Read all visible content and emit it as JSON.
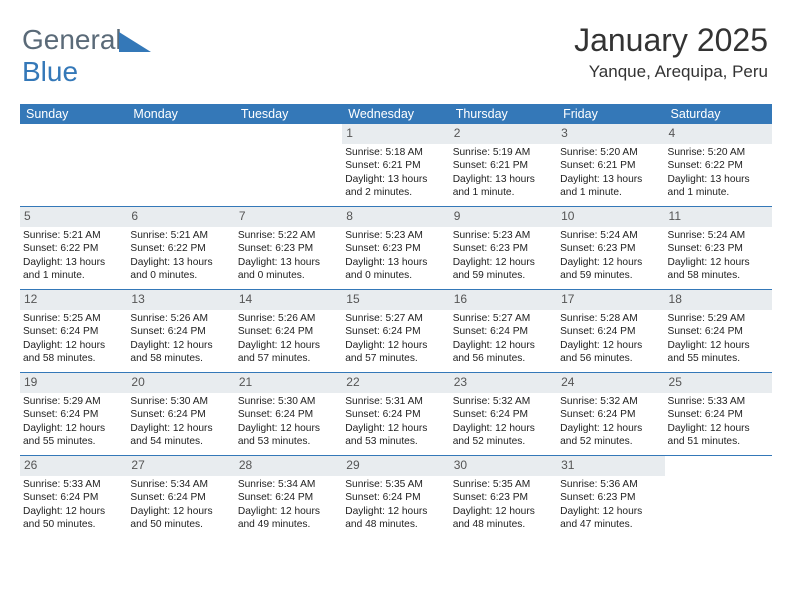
{
  "logo": {
    "part1": "General",
    "part2": "Blue"
  },
  "title": "January 2025",
  "subtitle": "Yanque, Arequipa, Peru",
  "colors": {
    "header_bg": "#3478b8",
    "header_fg": "#ffffff",
    "daynum_bg": "#e8ecef",
    "daynum_fg": "#555555",
    "divider": "#3478b8",
    "text": "#222222"
  },
  "fonts": {
    "title_size": 32,
    "subtitle_size": 17,
    "header_size": 12.5,
    "daynum_size": 12,
    "body_size": 10.2
  },
  "weekdays": [
    "Sunday",
    "Monday",
    "Tuesday",
    "Wednesday",
    "Thursday",
    "Friday",
    "Saturday"
  ],
  "weeks": [
    [
      {
        "n": "",
        "sr": "",
        "ss": "",
        "dl": ""
      },
      {
        "n": "",
        "sr": "",
        "ss": "",
        "dl": ""
      },
      {
        "n": "",
        "sr": "",
        "ss": "",
        "dl": ""
      },
      {
        "n": "1",
        "sr": "Sunrise: 5:18 AM",
        "ss": "Sunset: 6:21 PM",
        "dl": "Daylight: 13 hours and 2 minutes."
      },
      {
        "n": "2",
        "sr": "Sunrise: 5:19 AM",
        "ss": "Sunset: 6:21 PM",
        "dl": "Daylight: 13 hours and 1 minute."
      },
      {
        "n": "3",
        "sr": "Sunrise: 5:20 AM",
        "ss": "Sunset: 6:21 PM",
        "dl": "Daylight: 13 hours and 1 minute."
      },
      {
        "n": "4",
        "sr": "Sunrise: 5:20 AM",
        "ss": "Sunset: 6:22 PM",
        "dl": "Daylight: 13 hours and 1 minute."
      }
    ],
    [
      {
        "n": "5",
        "sr": "Sunrise: 5:21 AM",
        "ss": "Sunset: 6:22 PM",
        "dl": "Daylight: 13 hours and 1 minute."
      },
      {
        "n": "6",
        "sr": "Sunrise: 5:21 AM",
        "ss": "Sunset: 6:22 PM",
        "dl": "Daylight: 13 hours and 0 minutes."
      },
      {
        "n": "7",
        "sr": "Sunrise: 5:22 AM",
        "ss": "Sunset: 6:23 PM",
        "dl": "Daylight: 13 hours and 0 minutes."
      },
      {
        "n": "8",
        "sr": "Sunrise: 5:23 AM",
        "ss": "Sunset: 6:23 PM",
        "dl": "Daylight: 13 hours and 0 minutes."
      },
      {
        "n": "9",
        "sr": "Sunrise: 5:23 AM",
        "ss": "Sunset: 6:23 PM",
        "dl": "Daylight: 12 hours and 59 minutes."
      },
      {
        "n": "10",
        "sr": "Sunrise: 5:24 AM",
        "ss": "Sunset: 6:23 PM",
        "dl": "Daylight: 12 hours and 59 minutes."
      },
      {
        "n": "11",
        "sr": "Sunrise: 5:24 AM",
        "ss": "Sunset: 6:23 PM",
        "dl": "Daylight: 12 hours and 58 minutes."
      }
    ],
    [
      {
        "n": "12",
        "sr": "Sunrise: 5:25 AM",
        "ss": "Sunset: 6:24 PM",
        "dl": "Daylight: 12 hours and 58 minutes."
      },
      {
        "n": "13",
        "sr": "Sunrise: 5:26 AM",
        "ss": "Sunset: 6:24 PM",
        "dl": "Daylight: 12 hours and 58 minutes."
      },
      {
        "n": "14",
        "sr": "Sunrise: 5:26 AM",
        "ss": "Sunset: 6:24 PM",
        "dl": "Daylight: 12 hours and 57 minutes."
      },
      {
        "n": "15",
        "sr": "Sunrise: 5:27 AM",
        "ss": "Sunset: 6:24 PM",
        "dl": "Daylight: 12 hours and 57 minutes."
      },
      {
        "n": "16",
        "sr": "Sunrise: 5:27 AM",
        "ss": "Sunset: 6:24 PM",
        "dl": "Daylight: 12 hours and 56 minutes."
      },
      {
        "n": "17",
        "sr": "Sunrise: 5:28 AM",
        "ss": "Sunset: 6:24 PM",
        "dl": "Daylight: 12 hours and 56 minutes."
      },
      {
        "n": "18",
        "sr": "Sunrise: 5:29 AM",
        "ss": "Sunset: 6:24 PM",
        "dl": "Daylight: 12 hours and 55 minutes."
      }
    ],
    [
      {
        "n": "19",
        "sr": "Sunrise: 5:29 AM",
        "ss": "Sunset: 6:24 PM",
        "dl": "Daylight: 12 hours and 55 minutes."
      },
      {
        "n": "20",
        "sr": "Sunrise: 5:30 AM",
        "ss": "Sunset: 6:24 PM",
        "dl": "Daylight: 12 hours and 54 minutes."
      },
      {
        "n": "21",
        "sr": "Sunrise: 5:30 AM",
        "ss": "Sunset: 6:24 PM",
        "dl": "Daylight: 12 hours and 53 minutes."
      },
      {
        "n": "22",
        "sr": "Sunrise: 5:31 AM",
        "ss": "Sunset: 6:24 PM",
        "dl": "Daylight: 12 hours and 53 minutes."
      },
      {
        "n": "23",
        "sr": "Sunrise: 5:32 AM",
        "ss": "Sunset: 6:24 PM",
        "dl": "Daylight: 12 hours and 52 minutes."
      },
      {
        "n": "24",
        "sr": "Sunrise: 5:32 AM",
        "ss": "Sunset: 6:24 PM",
        "dl": "Daylight: 12 hours and 52 minutes."
      },
      {
        "n": "25",
        "sr": "Sunrise: 5:33 AM",
        "ss": "Sunset: 6:24 PM",
        "dl": "Daylight: 12 hours and 51 minutes."
      }
    ],
    [
      {
        "n": "26",
        "sr": "Sunrise: 5:33 AM",
        "ss": "Sunset: 6:24 PM",
        "dl": "Daylight: 12 hours and 50 minutes."
      },
      {
        "n": "27",
        "sr": "Sunrise: 5:34 AM",
        "ss": "Sunset: 6:24 PM",
        "dl": "Daylight: 12 hours and 50 minutes."
      },
      {
        "n": "28",
        "sr": "Sunrise: 5:34 AM",
        "ss": "Sunset: 6:24 PM",
        "dl": "Daylight: 12 hours and 49 minutes."
      },
      {
        "n": "29",
        "sr": "Sunrise: 5:35 AM",
        "ss": "Sunset: 6:24 PM",
        "dl": "Daylight: 12 hours and 48 minutes."
      },
      {
        "n": "30",
        "sr": "Sunrise: 5:35 AM",
        "ss": "Sunset: 6:23 PM",
        "dl": "Daylight: 12 hours and 48 minutes."
      },
      {
        "n": "31",
        "sr": "Sunrise: 5:36 AM",
        "ss": "Sunset: 6:23 PM",
        "dl": "Daylight: 12 hours and 47 minutes."
      },
      {
        "n": "",
        "sr": "",
        "ss": "",
        "dl": ""
      }
    ]
  ]
}
